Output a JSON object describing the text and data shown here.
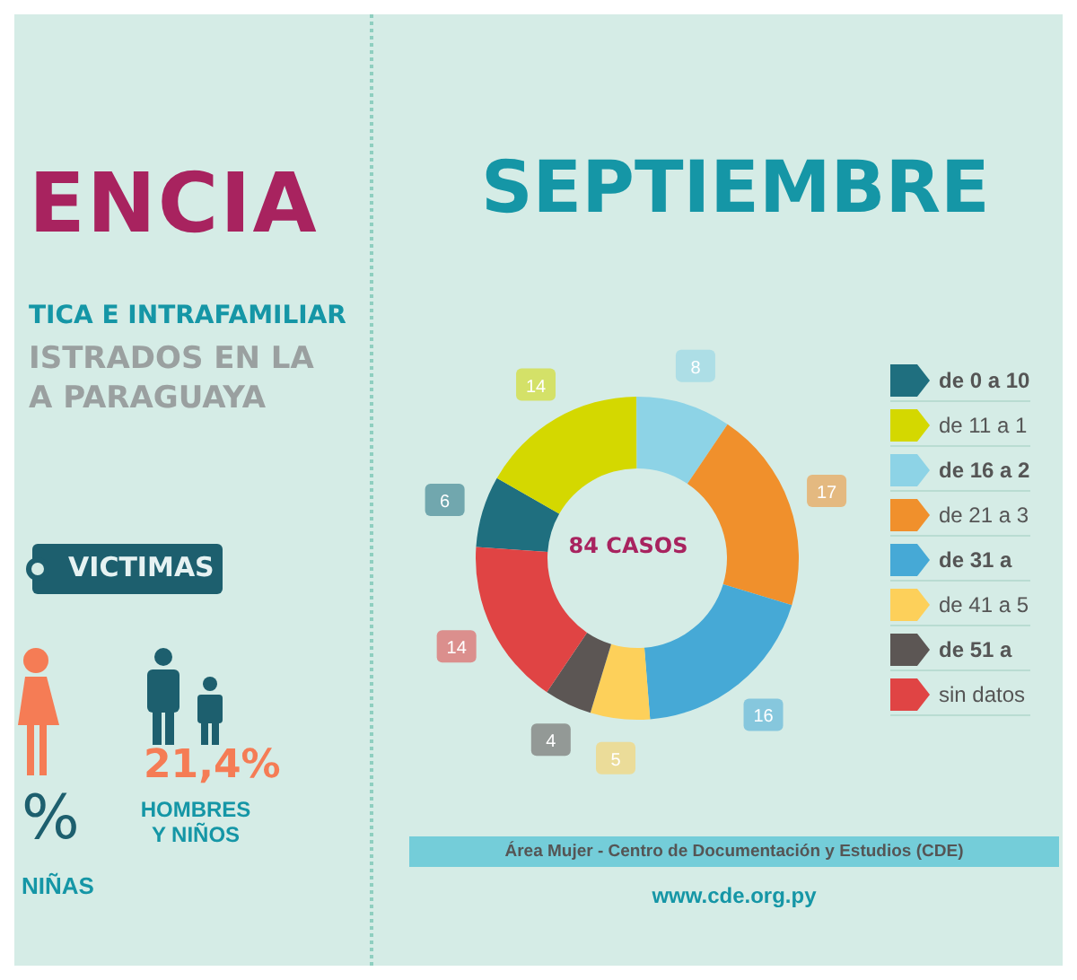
{
  "chart_data": [
    {
      "type": "other",
      "title": "ENCIA",
      "subtitle": "TICA E INTRAFAMILIAR",
      "annotations": [
        "ISTRADOS EN LA",
        "A PARAGUAYA",
        "VICTIMAS",
        "21,4%",
        "HOMBRES Y NIÑOS",
        "%",
        "NIÑAS"
      ]
    },
    {
      "type": "donut",
      "title": "SEPTIEMBRE",
      "categories": [
        "de 0 a 10",
        "de 11 a 1",
        "de 16 a 2",
        "de 21 a 3",
        "de 31 a",
        "de 41 a 5",
        "de 51 a",
        "sin datos"
      ],
      "values": [
        6,
        14,
        8,
        17,
        16,
        5,
        4,
        14
      ],
      "colors": [
        "#1f6f7f",
        "#d4d800",
        "#8dd3e6",
        "#f0902c",
        "#46a9d6",
        "#fdd05a",
        "#5c5654",
        "#e04444"
      ],
      "data_labels": true,
      "legend": "right",
      "annotations": [
        "84 CASOS",
        "Área Mujer - Centro de Documentación y Estudios (CDE)",
        "www.cde.org.py"
      ]
    }
  ]
}
